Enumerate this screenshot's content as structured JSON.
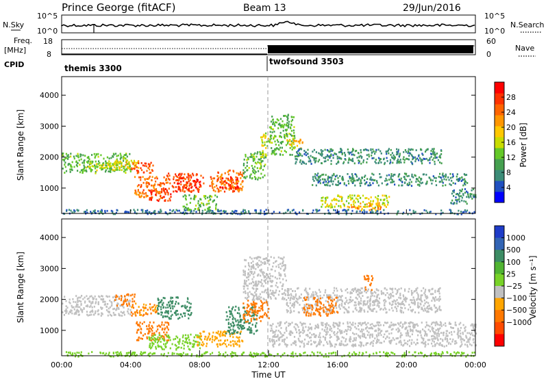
{
  "header": {
    "station": "Prince George (fitACF)",
    "beam": "Beam 13",
    "date": "29/Jun/2016"
  },
  "top_panels": {
    "nsky_label": "N.Sky",
    "nsearch_label": "N.Search",
    "count_tick_top": "10^5",
    "count_tick_bottom": "10^0",
    "freq_label_1": "Freq.",
    "freq_label_2": "[MHz]",
    "freq_ticks": [
      "18",
      "8"
    ],
    "nave_ticks": [
      "60",
      "0"
    ],
    "nave_label": "Nave",
    "cpid_label": "CPID",
    "cpid_modes": [
      {
        "name": "themis 3300",
        "start": "00:00",
        "end": "12:00"
      },
      {
        "name": "twofsound 3503",
        "start": "12:00",
        "end": "24:00"
      }
    ]
  },
  "colors": {
    "power_scale": [
      "#0000ff",
      "#2050c0",
      "#3c8c78",
      "#46a050",
      "#64c828",
      "#c8dc00",
      "#ffc800",
      "#ff9600",
      "#ff6400",
      "#ff3200",
      "#ff0000"
    ],
    "velocity_scale": [
      "#1e3cc8",
      "#3264b4",
      "#3c8c64",
      "#50b432",
      "#78d228",
      "#c8c8c8",
      "#ffa500",
      "#ff7800",
      "#ff4b00",
      "#ff0000"
    ],
    "ground_scatter": "#c0c0c0"
  },
  "chart_data": [
    {
      "type": "heatmap",
      "panel": "power",
      "ylabel": "Slant Range [km]",
      "yticks": [
        1000,
        2000,
        3000,
        4000
      ],
      "ylim": [
        180,
        4600
      ],
      "xlim": [
        0,
        24
      ],
      "colorbar_label": "Power [dB]",
      "colorbar_ticks": [
        4,
        8,
        12,
        16,
        20,
        24,
        28
      ],
      "colorbar_range": [
        0,
        32
      ],
      "regions": [
        {
          "t0": 0.0,
          "t1": 4.0,
          "r0": 1500,
          "r1": 2150,
          "value": 12
        },
        {
          "t0": 1.5,
          "t1": 3.5,
          "r0": 1600,
          "r1": 1900,
          "value": 16
        },
        {
          "t0": 3.0,
          "t1": 4.5,
          "r0": 1650,
          "r1": 2000,
          "value": 18
        },
        {
          "t0": 4.0,
          "t1": 5.3,
          "r0": 1500,
          "r1": 1850,
          "value": 26
        },
        {
          "t0": 4.2,
          "t1": 6.0,
          "r0": 700,
          "r1": 1400,
          "value": 24
        },
        {
          "t0": 5.0,
          "t1": 6.3,
          "r0": 600,
          "r1": 1000,
          "value": 28
        },
        {
          "t0": 6.0,
          "t1": 7.5,
          "r0": 900,
          "r1": 1500,
          "value": 26
        },
        {
          "t0": 6.6,
          "t1": 8.2,
          "r0": 900,
          "r1": 1500,
          "value": 28
        },
        {
          "t0": 7.0,
          "t1": 9.0,
          "r0": 300,
          "r1": 800,
          "value": 12
        },
        {
          "t0": 8.5,
          "t1": 10.5,
          "r0": 900,
          "r1": 1600,
          "value": 24
        },
        {
          "t0": 9.0,
          "t1": 10.2,
          "r0": 1000,
          "r1": 1400,
          "value": 28
        },
        {
          "t0": 10.5,
          "t1": 11.8,
          "r0": 1300,
          "r1": 2200,
          "value": 12
        },
        {
          "t0": 11.5,
          "t1": 12.0,
          "r0": 2000,
          "r1": 2800,
          "value": 16
        },
        {
          "t0": 12.0,
          "t1": 13.5,
          "r0": 2100,
          "r1": 3400,
          "value": 12
        },
        {
          "t0": 13.0,
          "t1": 14.0,
          "r0": 2300,
          "r1": 2600,
          "value": 20
        },
        {
          "t0": 13.5,
          "t1": 22.0,
          "r0": 1800,
          "r1": 2300,
          "value": 8
        },
        {
          "t0": 14.5,
          "t1": 23.5,
          "r0": 1100,
          "r1": 1500,
          "value": 8
        },
        {
          "t0": 15.0,
          "t1": 19.0,
          "r0": 400,
          "r1": 800,
          "value": 16
        },
        {
          "t0": 16.5,
          "t1": 18.5,
          "r0": 300,
          "r1": 550,
          "value": 22
        },
        {
          "t0": 22.5,
          "t1": 24.0,
          "r0": 500,
          "r1": 1000,
          "value": 8
        },
        {
          "t0": 0.0,
          "t1": 24.0,
          "r0": 180,
          "r1": 330,
          "value": 6
        }
      ]
    },
    {
      "type": "heatmap",
      "panel": "velocity",
      "xlabel": "Time UT",
      "ylabel": "Slant Range [km]",
      "yticks": [
        1000,
        2000,
        3000,
        4000
      ],
      "ylim": [
        180,
        4600
      ],
      "xlim": [
        0,
        24
      ],
      "xticks": [
        "00:00",
        "04:00",
        "08:00",
        "12:00",
        "16:00",
        "20:00",
        "00:00"
      ],
      "colorbar_label": "Velocity [m s⁻¹]",
      "colorbar_ticks": [
        "1000",
        "500",
        "100",
        "25",
        "−25",
        "−100",
        "−500",
        "−1000"
      ],
      "regions": [
        {
          "t0": 0.0,
          "t1": 4.0,
          "r0": 1500,
          "r1": 2150,
          "value": 0
        },
        {
          "t0": 3.0,
          "t1": 4.2,
          "r0": 1800,
          "r1": 2200,
          "value": -200
        },
        {
          "t0": 4.0,
          "t1": 5.5,
          "r0": 1500,
          "r1": 1900,
          "value": -100
        },
        {
          "t0": 4.3,
          "t1": 6.2,
          "r0": 700,
          "r1": 1300,
          "value": -300
        },
        {
          "t0": 5.5,
          "t1": 7.5,
          "r0": 1400,
          "r1": 2100,
          "value": 300
        },
        {
          "t0": 5.0,
          "t1": 8.0,
          "r0": 400,
          "r1": 900,
          "value": 60
        },
        {
          "t0": 7.8,
          "t1": 10.5,
          "r0": 500,
          "r1": 1000,
          "value": -60
        },
        {
          "t0": 9.5,
          "t1": 11.3,
          "r0": 900,
          "r1": 1800,
          "value": 200
        },
        {
          "t0": 10.5,
          "t1": 12.0,
          "r0": 1300,
          "r1": 2000,
          "value": -150
        },
        {
          "t0": 10.5,
          "t1": 13.0,
          "r0": 2000,
          "r1": 3400,
          "value": 0
        },
        {
          "t0": 13.0,
          "t1": 22.0,
          "r0": 1600,
          "r1": 2400,
          "value": 0
        },
        {
          "t0": 14.0,
          "t1": 16.0,
          "r0": 1500,
          "r1": 2100,
          "value": -200
        },
        {
          "t0": 17.5,
          "t1": 18.0,
          "r0": 2300,
          "r1": 2800,
          "value": -400
        },
        {
          "t0": 12.0,
          "t1": 24.0,
          "r0": 500,
          "r1": 1300,
          "value": 0
        },
        {
          "t0": 0.0,
          "t1": 24.0,
          "r0": 180,
          "r1": 330,
          "value": 60
        }
      ]
    }
  ]
}
